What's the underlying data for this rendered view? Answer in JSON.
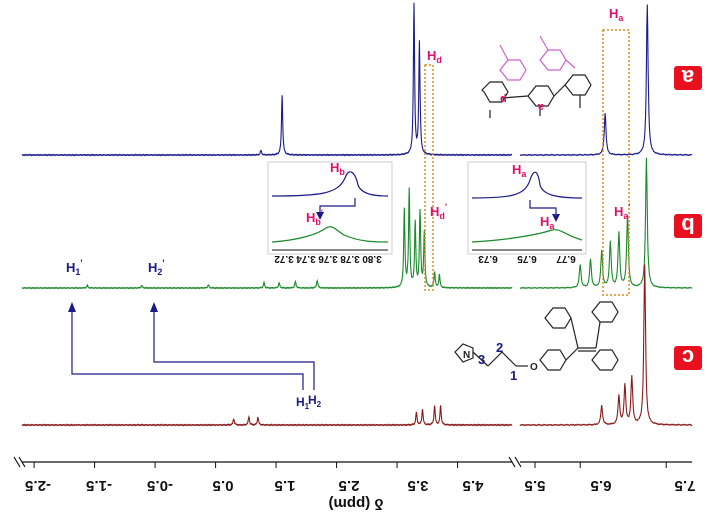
{
  "chart_data": {
    "type": "line",
    "xlabel": "δ (ppm)",
    "x_reversed": true,
    "x_breaks": [
      "between -2.5 and -2.0",
      "between 5.5 and 6.0"
    ],
    "xticks": [
      "7.5",
      "6.5",
      "5.5",
      "4.5",
      "3.5",
      "2.5",
      "1.5",
      "0.5",
      "-0.5",
      "-1.5",
      "-2.5"
    ],
    "series": [
      {
        "name": "a",
        "color": "#1a1a8c",
        "badge_color": "#e8101e",
        "peaks": [
          {
            "ppm": 7.28,
            "height": 1.0
          },
          {
            "ppm": 6.79,
            "height": 0.28
          },
          {
            "ppm": 3.87,
            "height": 0.75
          },
          {
            "ppm": 3.78,
            "height": 1.0
          },
          {
            "ppm": 1.6,
            "height": 0.4
          },
          {
            "ppm": 1.25,
            "height": 0.03
          }
        ]
      },
      {
        "name": "b",
        "color": "#1a8a2a",
        "badge_color": "#e8101e",
        "peaks": [
          {
            "ppm": 7.27,
            "height": 1.0
          },
          {
            "ppm": 7.05,
            "height": 0.55
          },
          {
            "ppm": 6.95,
            "height": 0.42
          },
          {
            "ppm": 6.85,
            "height": 0.35
          },
          {
            "ppm": 6.75,
            "height": 0.28
          },
          {
            "ppm": 6.62,
            "height": 0.22
          },
          {
            "ppm": 6.5,
            "height": 0.18
          },
          {
            "ppm": 3.95,
            "height": 0.42
          },
          {
            "ppm": 3.88,
            "height": 0.58
          },
          {
            "ppm": 3.8,
            "height": 0.5
          },
          {
            "ppm": 3.7,
            "height": 0.75
          },
          {
            "ppm": 3.62,
            "height": 0.6
          },
          {
            "ppm": 4.12,
            "height": 0.12
          },
          {
            "ppm": 4.2,
            "height": 0.1
          },
          {
            "ppm": 2.18,
            "height": 0.06
          },
          {
            "ppm": 1.82,
            "height": 0.05
          },
          {
            "ppm": 1.55,
            "height": 0.04
          },
          {
            "ppm": 1.3,
            "height": 0.04
          },
          {
            "ppm": 0.38,
            "height": 0.025
          },
          {
            "ppm": -0.72,
            "height": 0.02
          },
          {
            "ppm": -1.62,
            "height": 0.02
          }
        ]
      },
      {
        "name": "c",
        "color": "#8b1a1a",
        "badge_color": "#e8101e",
        "peaks": [
          {
            "ppm": 7.25,
            "height": 1.0
          },
          {
            "ppm": 7.1,
            "height": 0.3
          },
          {
            "ppm": 7.02,
            "height": 0.25
          },
          {
            "ppm": 6.95,
            "height": 0.18
          },
          {
            "ppm": 6.75,
            "height": 0.12
          },
          {
            "ppm": 4.22,
            "height": 0.12
          },
          {
            "ppm": 4.12,
            "height": 0.12
          },
          {
            "ppm": 3.92,
            "height": 0.1
          },
          {
            "ppm": 3.82,
            "height": 0.08
          },
          {
            "ppm": 1.2,
            "height": 0.05
          },
          {
            "ppm": 1.05,
            "height": 0.05
          },
          {
            "ppm": 0.8,
            "height": 0.04
          }
        ]
      }
    ],
    "insets": [
      {
        "ticks": [
          "3.80",
          "3.78",
          "3.76",
          "3.74",
          "3.72"
        ],
        "labels": [
          "Hb",
          "Hb'"
        ]
      },
      {
        "ticks": [
          "6.77",
          "6.75",
          "6.73"
        ],
        "labels": [
          "Ha",
          "Ha'"
        ]
      }
    ],
    "annotations": {
      "a_labels": [
        "Ha",
        "Hd",
        "d",
        "a"
      ],
      "b_labels": [
        "Ha'",
        "Hd'"
      ],
      "b_shielded": [
        "H1'",
        "H2'"
      ],
      "c_labels": [
        "H1",
        "H2",
        "1",
        "2",
        "3",
        "N",
        "O"
      ]
    }
  }
}
